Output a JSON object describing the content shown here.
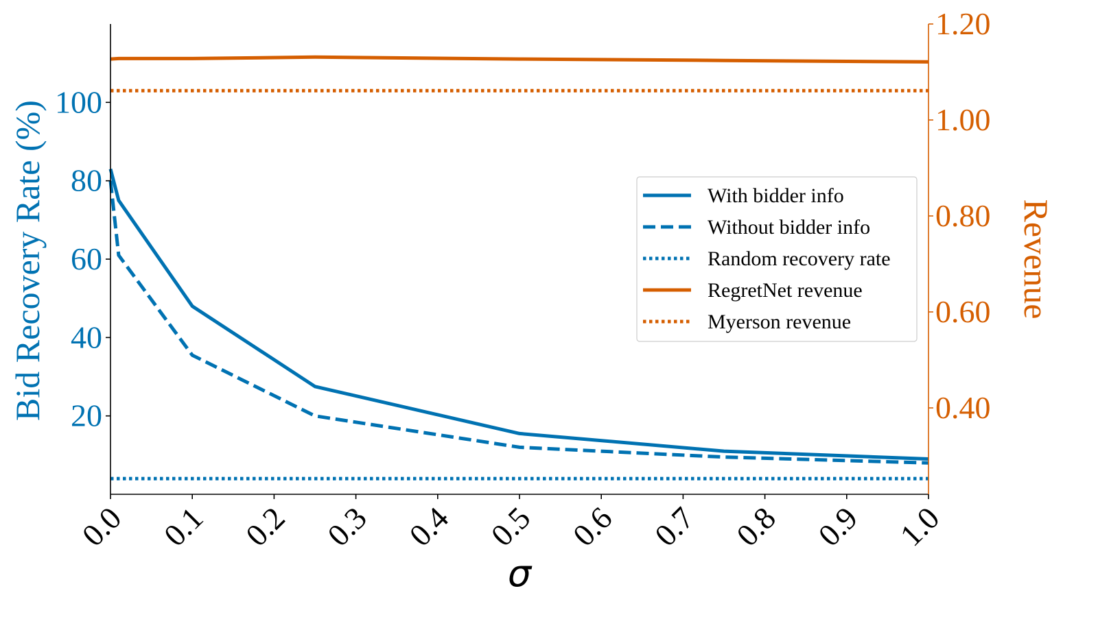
{
  "chart_data": {
    "type": "line",
    "xlabel": "σ",
    "ylabel_left": "Bid Recovery Rate (%)",
    "ylabel_right": "Revenue",
    "xlim": [
      0.0,
      1.0
    ],
    "ylim_left": [
      0,
      120
    ],
    "ylim_right": [
      0.22,
      1.2
    ],
    "x_ticks": [
      "0.0",
      "0.1",
      "0.2",
      "0.3",
      "0.4",
      "0.5",
      "0.6",
      "0.7",
      "0.8",
      "0.9",
      "1.0"
    ],
    "y_ticks_left": [
      "20",
      "40",
      "60",
      "80",
      "100"
    ],
    "y_ticks_right": [
      "0.40",
      "0.60",
      "0.80",
      "1.00",
      "1.20"
    ],
    "grid": false,
    "legend_position": "center-right",
    "colors": {
      "blue": "#0072b2",
      "orange": "#d55e00"
    },
    "series": [
      {
        "name": "With bidder info",
        "axis": "left",
        "style": "solid",
        "color": "#0072b2",
        "x": [
          0.0,
          0.01,
          0.1,
          0.25,
          0.5,
          0.75,
          1.0
        ],
        "y": [
          83,
          75,
          48,
          27.5,
          15.5,
          11,
          9
        ]
      },
      {
        "name": "Without bidder info",
        "axis": "left",
        "style": "dashed",
        "color": "#0072b2",
        "x": [
          0.0,
          0.01,
          0.1,
          0.25,
          0.5,
          0.75,
          1.0
        ],
        "y": [
          80,
          61,
          35.5,
          20,
          12,
          9.5,
          8
        ]
      },
      {
        "name": "Random recovery rate",
        "axis": "left",
        "style": "dotted",
        "color": "#0072b2",
        "x": [
          0.0,
          1.0
        ],
        "y": [
          4,
          4
        ]
      },
      {
        "name": "RegretNet revenue",
        "axis": "right",
        "style": "solid",
        "color": "#d55e00",
        "x": [
          0.0,
          0.01,
          0.1,
          0.25,
          0.5,
          0.75,
          1.0
        ],
        "y": [
          1.127,
          1.128,
          1.128,
          1.131,
          1.127,
          1.124,
          1.121
        ]
      },
      {
        "name": "Myerson revenue",
        "axis": "right",
        "style": "dotted",
        "color": "#d55e00",
        "x": [
          0.0,
          1.0
        ],
        "y": [
          1.061,
          1.061
        ]
      }
    ]
  }
}
